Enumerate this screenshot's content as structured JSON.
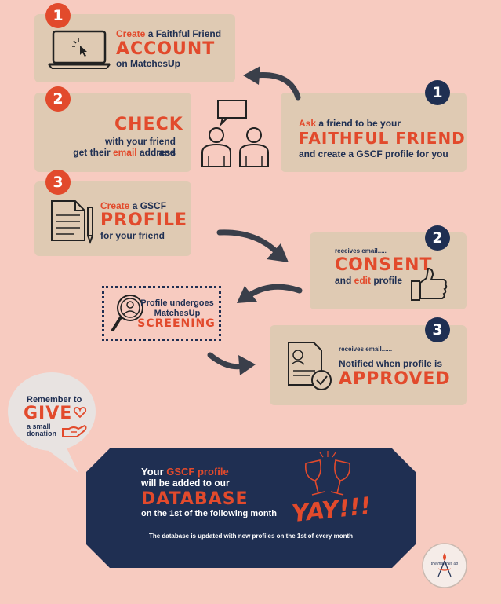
{
  "step1": {
    "num": "1",
    "pre": "Create",
    "mid": " a Faithful Friend",
    "big": "ACCOUNT",
    "sub": "on MatchesUp"
  },
  "step2": {
    "num": "2",
    "big": "CHECK",
    "line1": "with your friend and",
    "line2_pre": "get their ",
    "line2_hl": "email",
    "line2_post": " address"
  },
  "step3": {
    "num": "3",
    "pre": "Create",
    "mid": " a GSCF",
    "big": "PROFILE",
    "sub": "for your friend"
  },
  "friend1": {
    "num": "1",
    "pre": "Ask",
    "mid": " a friend to be your",
    "big": "FAITHFUL FRIEND",
    "sub": "and create a GSCF profile for you"
  },
  "friend2": {
    "num": "2",
    "small": "receives email.....",
    "big": "CONSENT",
    "sub_pre": "and ",
    "sub_hl": "edit",
    "sub_post": " profile"
  },
  "friend3": {
    "num": "3",
    "small": "receives email......",
    "mid": "Notified when profile is",
    "big": "APPROVED"
  },
  "screening": {
    "line1": "Profile undergoes",
    "line2": "MatchesUp",
    "big": "SCREENING"
  },
  "donation": {
    "line1": "Remember to",
    "big": "GIVE",
    "line2": "a small",
    "line3": "donation"
  },
  "database": {
    "pre": "Your ",
    "hl": "GSCF profile",
    "line2": "will be added to our",
    "big": "DATABASE",
    "line3": "on the 1st of the following month",
    "yay": "YAY!!!",
    "footnote": "The database is updated with new profiles on the 1st of every month"
  },
  "logo": {
    "text": "the matches up"
  }
}
